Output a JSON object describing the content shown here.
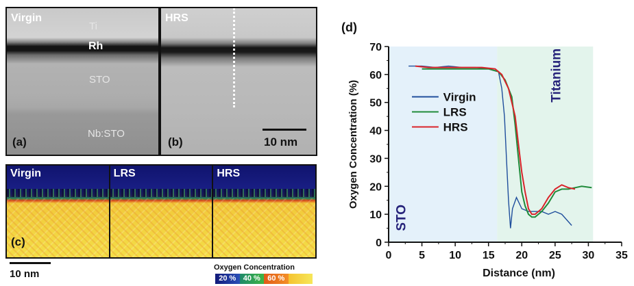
{
  "panel_a": {
    "title": "Virgin",
    "layer_ti": "Ti",
    "layer_rh": "Rh",
    "layer_sto": "STO",
    "layer_nbsto": "Nb:STO",
    "tag": "(a)"
  },
  "panel_b": {
    "title": "HRS",
    "tag": "(b)",
    "scalebar": "10 nm"
  },
  "panel_c": {
    "maps": [
      "Virgin",
      "LRS",
      "HRS"
    ],
    "tag": "(c)",
    "scalebar": "10 nm",
    "colorbar_title": "Oxygen Concentration",
    "colorbar_ticks": [
      "20 %",
      "40 %",
      "60 %"
    ]
  },
  "panel_d": {
    "tag": "(d)",
    "region_left": "STO",
    "region_right": "Titanium"
  },
  "colors": {
    "virgin": "#1f4e9c",
    "lrs": "#1f8a3a",
    "hrs": "#d9232a",
    "sto_region": "#e4f1fa",
    "ti_region": "#e3f4ec"
  },
  "chart_data": {
    "type": "line",
    "xlabel": "Distance (nm)",
    "ylabel": "Oxygen Concentration (%)",
    "xlim": [
      0,
      35
    ],
    "ylim": [
      0,
      70
    ],
    "xticks": [
      "0",
      "5",
      "10",
      "15",
      "20",
      "25",
      "30",
      "35"
    ],
    "yticks": [
      "0",
      "10",
      "20",
      "30",
      "40",
      "50",
      "60",
      "70"
    ],
    "regions": [
      {
        "label": "STO",
        "x": [
          0,
          16.3
        ]
      },
      {
        "label": "Titanium",
        "x": [
          16.3,
          30.7
        ]
      }
    ],
    "series": [
      {
        "name": "Virgin",
        "x": [
          3,
          5,
          7,
          9,
          11,
          13,
          15,
          16.5,
          17,
          17.4,
          17.7,
          18.0,
          18.3,
          18.6,
          19.2,
          20,
          21,
          22,
          23,
          24,
          25,
          26,
          27.5
        ],
        "y": [
          63,
          63,
          62.5,
          63,
          62.5,
          62.5,
          62,
          61,
          55,
          45,
          30,
          15,
          5,
          12,
          16,
          12,
          11,
          11,
          11,
          10,
          11,
          10,
          6
        ]
      },
      {
        "name": "LRS",
        "x": [
          5,
          7,
          9,
          11,
          13,
          15,
          16.5,
          17.5,
          18.5,
          19.0,
          19.5,
          20,
          20.5,
          21,
          21.5,
          22,
          23,
          24,
          25,
          26,
          27,
          28,
          29,
          30.5
        ],
        "y": [
          62,
          62,
          62,
          62,
          62,
          62,
          61,
          58,
          52,
          42,
          30,
          18,
          13,
          10,
          9,
          9,
          11,
          14,
          18,
          19,
          19,
          19.5,
          20,
          19.5
        ]
      },
      {
        "name": "HRS",
        "x": [
          4,
          6,
          8,
          10,
          12,
          14,
          16,
          17,
          18,
          19,
          19.5,
          20,
          20.5,
          21,
          21.5,
          22,
          23,
          24,
          25,
          26,
          27,
          28
        ],
        "y": [
          63,
          62.5,
          62.5,
          62.5,
          62.5,
          62.5,
          62,
          60,
          55,
          45,
          35,
          25,
          18,
          12,
          10,
          10,
          12,
          16,
          19,
          20.5,
          19.5,
          19
        ]
      }
    ]
  }
}
